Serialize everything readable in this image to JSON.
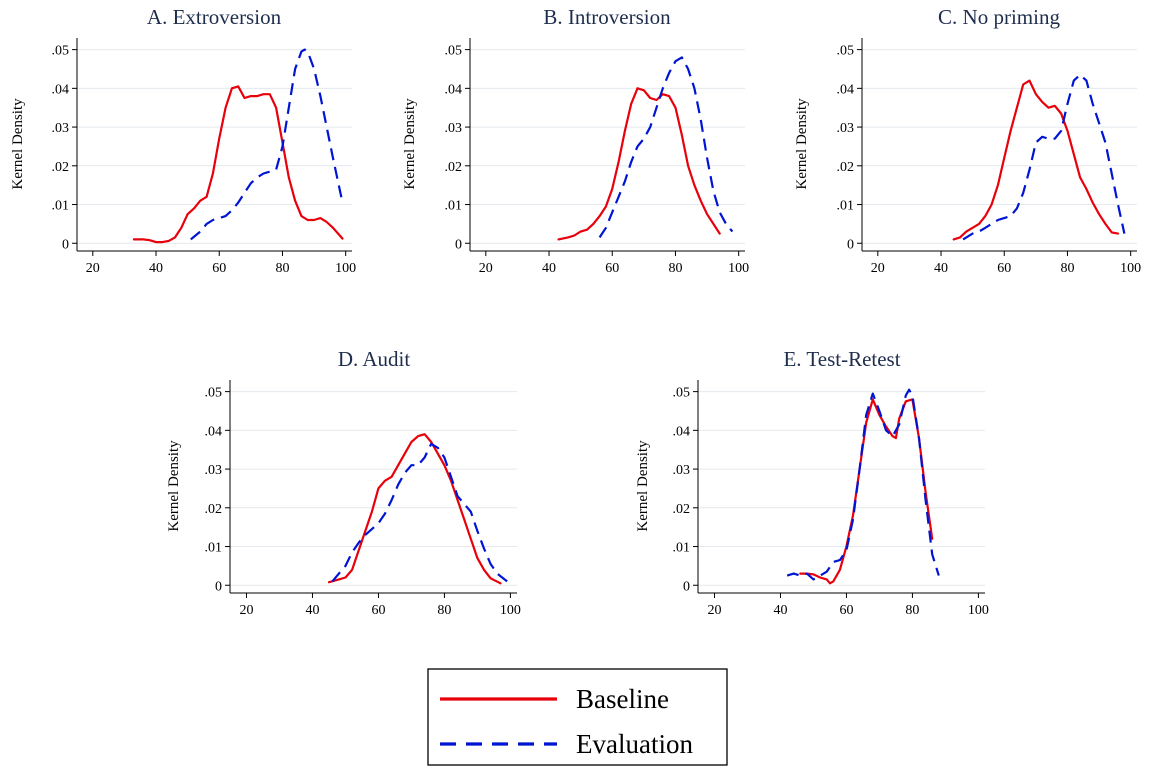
{
  "legend": {
    "items": [
      {
        "label": "Baseline",
        "color": "#e8000b",
        "style": "solid"
      },
      {
        "label": "Evaluation",
        "color": "#0015d4",
        "style": "dashed"
      }
    ]
  },
  "chart_data": [
    {
      "type": "line",
      "title": "A. Extroversion",
      "ylabel": "Kernel Density",
      "xlim": [
        15,
        102
      ],
      "ylim": [
        -0.002,
        0.053
      ],
      "xticks": [
        20,
        40,
        60,
        80,
        100
      ],
      "yticks": [
        0,
        0.01,
        0.02,
        0.03,
        0.04,
        0.05
      ],
      "ytick_labels": [
        "0",
        ".01",
        ".02",
        ".03",
        ".04",
        ".05"
      ],
      "grid": true,
      "series": [
        {
          "name": "Baseline",
          "color": "#e8000b",
          "style": "solid",
          "x": [
            33,
            36,
            38,
            40,
            42,
            44,
            46,
            48,
            50,
            52,
            54,
            56,
            58,
            60,
            62,
            64,
            66,
            67,
            68,
            70,
            72,
            74,
            76,
            78,
            80,
            82,
            84,
            86,
            88,
            90,
            92,
            94,
            96,
            99
          ],
          "y": [
            0.001,
            0.001,
            0.0008,
            0.0003,
            0.0003,
            0.0006,
            0.0015,
            0.004,
            0.0075,
            0.009,
            0.011,
            0.012,
            0.018,
            0.027,
            0.035,
            0.04,
            0.0405,
            0.039,
            0.0375,
            0.038,
            0.038,
            0.0385,
            0.0385,
            0.035,
            0.026,
            0.017,
            0.011,
            0.007,
            0.006,
            0.006,
            0.0065,
            0.0055,
            0.004,
            0.0012
          ]
        },
        {
          "name": "Evaluation",
          "color": "#0015d4",
          "style": "dashed",
          "x": [
            51,
            54,
            56,
            58,
            60,
            62,
            64,
            66,
            68,
            70,
            72,
            74,
            76,
            78,
            80,
            82,
            84,
            86,
            87,
            88,
            90,
            92,
            94,
            96,
            99
          ],
          "y": [
            0.001,
            0.003,
            0.005,
            0.006,
            0.0065,
            0.007,
            0.0085,
            0.0105,
            0.013,
            0.0155,
            0.017,
            0.018,
            0.0185,
            0.019,
            0.025,
            0.035,
            0.045,
            0.0495,
            0.05,
            0.0495,
            0.045,
            0.038,
            0.03,
            0.022,
            0.0105
          ]
        }
      ]
    },
    {
      "type": "line",
      "title": "B. Introversion",
      "ylabel": "Kernel Density",
      "xlim": [
        15,
        102
      ],
      "ylim": [
        -0.002,
        0.053
      ],
      "xticks": [
        20,
        40,
        60,
        80,
        100
      ],
      "yticks": [
        0,
        0.01,
        0.02,
        0.03,
        0.04,
        0.05
      ],
      "ytick_labels": [
        "0",
        ".01",
        ".02",
        ".03",
        ".04",
        ".05"
      ],
      "grid": true,
      "series": [
        {
          "name": "Baseline",
          "color": "#e8000b",
          "style": "solid",
          "x": [
            43,
            46,
            48,
            50,
            52,
            54,
            56,
            58,
            60,
            62,
            64,
            66,
            68,
            70,
            72,
            74,
            76,
            78,
            80,
            82,
            84,
            86,
            88,
            90,
            92,
            94
          ],
          "y": [
            0.001,
            0.0015,
            0.002,
            0.003,
            0.0035,
            0.005,
            0.007,
            0.0095,
            0.014,
            0.021,
            0.029,
            0.036,
            0.04,
            0.0395,
            0.0375,
            0.037,
            0.0385,
            0.038,
            0.035,
            0.028,
            0.02,
            0.015,
            0.011,
            0.0075,
            0.005,
            0.0025
          ]
        },
        {
          "name": "Evaluation",
          "color": "#0015d4",
          "style": "dashed",
          "x": [
            56,
            58,
            60,
            62,
            64,
            66,
            68,
            70,
            72,
            74,
            76,
            78,
            80,
            82,
            84,
            86,
            88,
            90,
            92,
            94,
            96,
            98
          ],
          "y": [
            0.0015,
            0.004,
            0.008,
            0.012,
            0.016,
            0.021,
            0.025,
            0.027,
            0.03,
            0.035,
            0.04,
            0.044,
            0.047,
            0.048,
            0.045,
            0.04,
            0.032,
            0.022,
            0.0135,
            0.008,
            0.005,
            0.003
          ]
        }
      ]
    },
    {
      "type": "line",
      "title": "C. No priming",
      "ylabel": "Kernel Density",
      "xlim": [
        15,
        102
      ],
      "ylim": [
        -0.002,
        0.053
      ],
      "xticks": [
        20,
        40,
        60,
        80,
        100
      ],
      "yticks": [
        0,
        0.01,
        0.02,
        0.03,
        0.04,
        0.05
      ],
      "ytick_labels": [
        "0",
        ".01",
        ".02",
        ".03",
        ".04",
        ".05"
      ],
      "grid": true,
      "series": [
        {
          "name": "Baseline",
          "color": "#e8000b",
          "style": "solid",
          "x": [
            44,
            46,
            48,
            50,
            52,
            54,
            56,
            58,
            60,
            62,
            64,
            66,
            68,
            70,
            72,
            74,
            76,
            78,
            80,
            82,
            84,
            86,
            88,
            90,
            92,
            94,
            96
          ],
          "y": [
            0.001,
            0.0015,
            0.003,
            0.004,
            0.005,
            0.007,
            0.01,
            0.015,
            0.022,
            0.029,
            0.035,
            0.041,
            0.042,
            0.0385,
            0.0365,
            0.035,
            0.0355,
            0.0335,
            0.029,
            0.023,
            0.017,
            0.014,
            0.0105,
            0.0075,
            0.005,
            0.0028,
            0.0025
          ]
        },
        {
          "name": "Evaluation",
          "color": "#0015d4",
          "style": "dashed",
          "x": [
            47,
            50,
            52,
            54,
            56,
            58,
            60,
            62,
            64,
            66,
            68,
            70,
            72,
            74,
            76,
            78,
            80,
            82,
            84,
            86,
            88,
            90,
            92,
            94,
            96,
            98
          ],
          "y": [
            0.001,
            0.0025,
            0.003,
            0.004,
            0.005,
            0.006,
            0.0065,
            0.007,
            0.009,
            0.013,
            0.019,
            0.026,
            0.0275,
            0.027,
            0.027,
            0.029,
            0.036,
            0.042,
            0.0435,
            0.042,
            0.036,
            0.031,
            0.026,
            0.018,
            0.01,
            0.0025
          ]
        }
      ]
    },
    {
      "type": "line",
      "title": "D. Audit",
      "ylabel": "Kernel Density",
      "xlim": [
        15,
        102
      ],
      "ylim": [
        -0.002,
        0.053
      ],
      "xticks": [
        20,
        40,
        60,
        80,
        100
      ],
      "yticks": [
        0,
        0.01,
        0.02,
        0.03,
        0.04,
        0.05
      ],
      "ytick_labels": [
        "0",
        ".01",
        ".02",
        ".03",
        ".04",
        ".05"
      ],
      "grid": true,
      "series": [
        {
          "name": "Baseline",
          "color": "#e8000b",
          "style": "solid",
          "x": [
            45,
            48,
            50,
            52,
            54,
            56,
            58,
            60,
            62,
            64,
            66,
            68,
            70,
            72,
            74,
            76,
            78,
            80,
            82,
            84,
            86,
            88,
            90,
            92,
            94,
            97
          ],
          "y": [
            0.0008,
            0.0015,
            0.002,
            0.004,
            0.009,
            0.014,
            0.019,
            0.025,
            0.027,
            0.028,
            0.031,
            0.034,
            0.037,
            0.0385,
            0.039,
            0.037,
            0.034,
            0.031,
            0.027,
            0.022,
            0.017,
            0.012,
            0.007,
            0.004,
            0.0018,
            0.0005
          ]
        },
        {
          "name": "Evaluation",
          "color": "#0015d4",
          "style": "dashed",
          "x": [
            46,
            48,
            50,
            52,
            54,
            56,
            58,
            60,
            62,
            64,
            66,
            68,
            70,
            72,
            74,
            76,
            78,
            80,
            82,
            84,
            86,
            88,
            90,
            92,
            94,
            96,
            99
          ],
          "y": [
            0.001,
            0.003,
            0.005,
            0.0085,
            0.011,
            0.013,
            0.0145,
            0.016,
            0.0185,
            0.022,
            0.026,
            0.029,
            0.031,
            0.031,
            0.033,
            0.0365,
            0.0355,
            0.033,
            0.028,
            0.023,
            0.021,
            0.019,
            0.014,
            0.0095,
            0.0055,
            0.003,
            0.001
          ]
        }
      ]
    },
    {
      "type": "line",
      "title": "E. Test-Retest",
      "ylabel": "Kernel Density",
      "xlim": [
        15,
        102
      ],
      "ylim": [
        -0.002,
        0.053
      ],
      "xticks": [
        20,
        40,
        60,
        80,
        100
      ],
      "yticks": [
        0,
        0.01,
        0.02,
        0.03,
        0.04,
        0.05
      ],
      "ytick_labels": [
        "0",
        ".01",
        ".02",
        ".03",
        ".04",
        ".05"
      ],
      "grid": true,
      "series": [
        {
          "name": "Baseline",
          "color": "#e8000b",
          "style": "solid",
          "x": [
            46,
            48,
            50,
            52,
            54,
            55,
            56,
            58,
            60,
            62,
            64,
            66,
            68,
            70,
            72,
            74,
            75,
            76,
            78,
            80,
            82,
            84,
            86
          ],
          "y": [
            0.003,
            0.003,
            0.0028,
            0.002,
            0.0015,
            0.0005,
            0.001,
            0.004,
            0.01,
            0.018,
            0.03,
            0.042,
            0.048,
            0.044,
            0.041,
            0.0385,
            0.038,
            0.043,
            0.0475,
            0.048,
            0.038,
            0.024,
            0.012
          ]
        },
        {
          "name": "Evaluation",
          "color": "#0015d4",
          "style": "dashed",
          "x": [
            42,
            44,
            46,
            48,
            50,
            52,
            54,
            56,
            58,
            60,
            62,
            64,
            66,
            68,
            70,
            72,
            74,
            76,
            78,
            79,
            80,
            82,
            84,
            86,
            88
          ],
          "y": [
            0.0025,
            0.003,
            0.0025,
            0.003,
            0.0015,
            0.0025,
            0.0035,
            0.006,
            0.0065,
            0.009,
            0.017,
            0.03,
            0.044,
            0.0495,
            0.045,
            0.04,
            0.0385,
            0.0415,
            0.049,
            0.0505,
            0.049,
            0.038,
            0.022,
            0.008,
            0.0025
          ]
        }
      ]
    }
  ]
}
